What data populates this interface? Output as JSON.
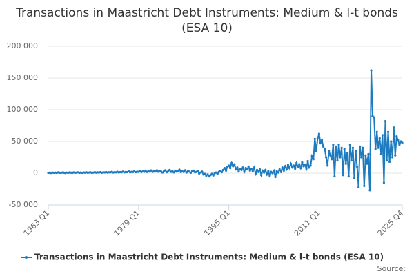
{
  "chart_data": {
    "type": "line",
    "title": "Transactions in Maastricht Debt Instruments: Medium & l-t bonds (ESA 10)",
    "source": "Source:",
    "categories": [
      "1963 Q1",
      null,
      null,
      null,
      null,
      null,
      null,
      null,
      null,
      null,
      null,
      null,
      null,
      null,
      null,
      null,
      null,
      null,
      null,
      null,
      null,
      null,
      null,
      null,
      null,
      null,
      null,
      null,
      null,
      null,
      null,
      null,
      null,
      null,
      null,
      null,
      null,
      null,
      null,
      null,
      null,
      null,
      null,
      null,
      null,
      null,
      null,
      null,
      null,
      null,
      null,
      null,
      null,
      null,
      null,
      null,
      null,
      null,
      null,
      null,
      null,
      null,
      null,
      null,
      "1979 Q1",
      null,
      null,
      null,
      null,
      null,
      null,
      null,
      null,
      null,
      null,
      null,
      null,
      null,
      null,
      null,
      null,
      null,
      null,
      null,
      null,
      null,
      null,
      null,
      null,
      null,
      null,
      null,
      null,
      null,
      null,
      null,
      null,
      null,
      null,
      null,
      null,
      null,
      null,
      null,
      null,
      null,
      null,
      null,
      null,
      null,
      null,
      null,
      null,
      null,
      null,
      null,
      null,
      null,
      null,
      null,
      null,
      null,
      null,
      null,
      null,
      null,
      null,
      null,
      "1995 Q1",
      null,
      null,
      null,
      null,
      null,
      null,
      null,
      null,
      null,
      null,
      null,
      null,
      null,
      null,
      null,
      null,
      null,
      null,
      null,
      null,
      null,
      null,
      null,
      null,
      null,
      null,
      null,
      null,
      null,
      null,
      null,
      null,
      null,
      null,
      null,
      null,
      null,
      null,
      null,
      null,
      null,
      null,
      null,
      null,
      null,
      null,
      null,
      null,
      null,
      null,
      null,
      null,
      null,
      null,
      null,
      null,
      null,
      null,
      null,
      null,
      null,
      null,
      null,
      "2011 Q1",
      null,
      null,
      null,
      null,
      null,
      null,
      null,
      null,
      null,
      null,
      null,
      null,
      null,
      null,
      null,
      null,
      null,
      null,
      null,
      null,
      null,
      null,
      null,
      null,
      null,
      null,
      null,
      null,
      null,
      null,
      null,
      null,
      null,
      null,
      null,
      null,
      null,
      null,
      null,
      null,
      null,
      null,
      null,
      null,
      null,
      null,
      null,
      null,
      null,
      null,
      null,
      null,
      null,
      null,
      null,
      null,
      null,
      null,
      "2025 Q4"
    ],
    "series": [
      {
        "name": "Transactions in Maastricht Debt Instruments: Medium & l-t bonds (ESA 10)",
        "color": "#1f7bbf",
        "values": [
          500,
          800,
          300,
          1000,
          600,
          900,
          400,
          1200,
          700,
          500,
          1000,
          800,
          300,
          900,
          600,
          1100,
          800,
          400,
          1200,
          700,
          900,
          1300,
          600,
          1000,
          500,
          1100,
          800,
          1400,
          700,
          1000,
          1200,
          600,
          900,
          1500,
          800,
          1200,
          1000,
          1600,
          700,
          1300,
          1100,
          1800,
          900,
          1400,
          1200,
          2000,
          1000,
          1500,
          1300,
          2200,
          1100,
          1700,
          1500,
          2500,
          1200,
          1900,
          1600,
          2800,
          1400,
          2100,
          1800,
          3000,
          1500,
          2300,
          2000,
          3500,
          1700,
          2800,
          2200,
          4000,
          1900,
          3200,
          2500,
          4200,
          2100,
          3500,
          2700,
          4500,
          2300,
          3800,
          2500,
          1000,
          3000,
          4500,
          1500,
          2800,
          5000,
          2000,
          3500,
          1200,
          4000,
          2500,
          3000,
          5500,
          1800,
          3200,
          2000,
          4500,
          1000,
          3500,
          2500,
          500,
          3000,
          4000,
          1500,
          2000,
          3500,
          -500,
          1000,
          2500,
          -2000,
          -1000,
          -4000,
          -2000,
          -5000,
          -3000,
          -1000,
          -3500,
          0,
          1000,
          -1000,
          2000,
          3000,
          1500,
          5000,
          8000,
          4000,
          10000,
          12000,
          8000,
          16000,
          11000,
          14000,
          6000,
          9000,
          3000,
          7000,
          5000,
          9000,
          2000,
          8000,
          6000,
          10000,
          4000,
          7000,
          3000,
          9000,
          -1000,
          5000,
          2000,
          6000,
          -3000,
          4000,
          1000,
          5000,
          -2000,
          3000,
          -4000,
          2000,
          0,
          4000,
          -6000,
          3000,
          1000,
          6000,
          2000,
          9000,
          4000,
          11000,
          6000,
          13000,
          8000,
          15000,
          9000,
          12000,
          7000,
          16000,
          10000,
          14000,
          8000,
          17000,
          11000,
          13000,
          7000,
          19000,
          9000,
          12000,
          27000,
          22000,
          54000,
          35000,
          55000,
          62000,
          48000,
          52000,
          42000,
          38000,
          25000,
          12000,
          35000,
          28000,
          22000,
          45000,
          -5000,
          42000,
          20000,
          45000,
          25000,
          40000,
          -3000,
          38000,
          15000,
          32000,
          -5000,
          45000,
          20000,
          40000,
          -8000,
          35000,
          10000,
          -22000,
          42000,
          25000,
          40000,
          -20000,
          28000,
          15000,
          30000,
          -27000,
          162000,
          90000,
          88000,
          38000,
          65000,
          40000,
          55000,
          30000,
          60000,
          -15000,
          82000,
          20000,
          65000,
          18000,
          50000,
          25000,
          72000,
          28000,
          58000,
          52000,
          45000,
          50000,
          48000
        ]
      }
    ],
    "ylim": [
      -50000,
      200000
    ],
    "yticks": [
      {
        "value": -50000,
        "label": "-50 000"
      },
      0,
      {
        "value": 50000,
        "label": "50 000"
      },
      {
        "value": 100000,
        "label": "100 000"
      },
      {
        "value": 150000,
        "label": "150 000"
      },
      {
        "value": 200000,
        "label": "200 000"
      }
    ],
    "grid": true
  }
}
